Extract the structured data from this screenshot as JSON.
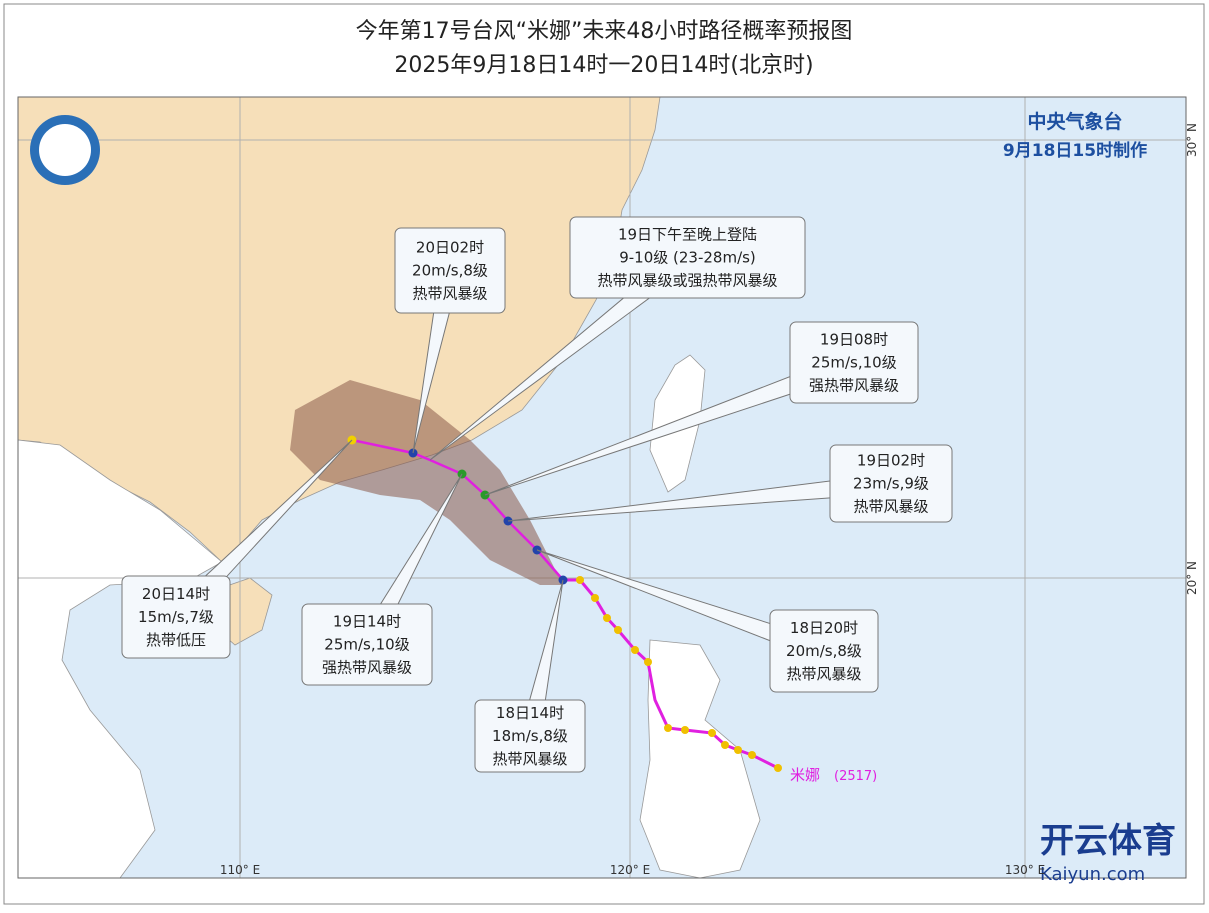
{
  "header": {
    "title": "今年第17号台风“米娜”未来48小时路径概率预报图",
    "subtitle": "2025年9月18日14时一20日14时(北京时)"
  },
  "agency": {
    "name": "中央气象台",
    "time": "9月18日15时制作"
  },
  "callouts": [
    {
      "lines": [
        "20日02时",
        "20m/s,8级",
        "热带风暴级"
      ]
    },
    {
      "lines": [
        "19日下午至晚上登陆",
        "9-10级  (23-28m/s)",
        "热带风暴级或强热带风暴级"
      ]
    },
    {
      "lines": [
        "19日08时",
        "25m/s,10级",
        "强热带风暴级"
      ]
    },
    {
      "lines": [
        "19日02时",
        "23m/s,9级",
        "热带风暴级"
      ]
    },
    {
      "lines": [
        "18日20时",
        "20m/s,8级",
        "热带风暴级"
      ]
    },
    {
      "lines": [
        "18日14时",
        "18m/s,8级",
        "热带风暴级"
      ]
    },
    {
      "lines": [
        "19日14时",
        "25m/s,10级",
        "强热带风暴级"
      ]
    },
    {
      "lines": [
        "20日14时",
        "15m/s,7级",
        "热带低压"
      ]
    }
  ],
  "axes": {
    "x_labels": [
      "110° E",
      "120° E",
      "130° E"
    ],
    "y_labels": [
      "20° N",
      "30° N"
    ]
  },
  "typhoon": {
    "label": "米娜",
    "code": "(2517)"
  },
  "watermark": {
    "name": "开云体育",
    "url": "Kaiyun.com"
  }
}
